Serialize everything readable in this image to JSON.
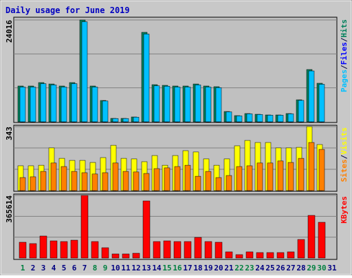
{
  "chart_data": {
    "type": "bar",
    "title": "Daily usage for June 2019",
    "separator": "/",
    "categories": [
      "1",
      "2",
      "3",
      "4",
      "5",
      "6",
      "7",
      "8",
      "9",
      "10",
      "11",
      "12",
      "13",
      "14",
      "15",
      "16",
      "17",
      "18",
      "19",
      "20",
      "21",
      "22",
      "23",
      "24",
      "25",
      "26",
      "27",
      "28",
      "29",
      "30",
      "31"
    ],
    "category_colors": [
      "#008040",
      "#000080",
      "#000080",
      "#000080",
      "#000080",
      "#000080",
      "#000080",
      "#008040",
      "#008040",
      "#000080",
      "#000080",
      "#000080",
      "#000080",
      "#000080",
      "#008040",
      "#008040",
      "#000080",
      "#000080",
      "#000080",
      "#000080",
      "#000080",
      "#008040",
      "#008040",
      "#000080",
      "#000080",
      "#000080",
      "#000080",
      "#000080",
      "#008040",
      "#008040",
      "#000080"
    ],
    "panels": [
      {
        "ylim": [
          0,
          24016
        ],
        "yticks": [
          24016
        ],
        "series": [
          {
            "name": "Hits",
            "color": "#00805c",
            "values": [
              8440,
              8440,
              9250,
              8920,
              8440,
              9250,
              24016,
              8440,
              5030,
              810,
              810,
              1140,
              21100,
              8760,
              8600,
              8440,
              8440,
              8920,
              8440,
              8280,
              2430,
              1460,
              1950,
              1780,
              1620,
              1620,
              1950,
              5190,
              12330,
              9090,
              0
            ]
          },
          {
            "name": "Files",
            "color": "#0000ff",
            "values": [
              4700,
              4700,
              4900,
              4800,
              4700,
              4900,
              12500,
              4700,
              2800,
              500,
              500,
              700,
              10800,
              4800,
              4700,
              4700,
              4700,
              4800,
              4700,
              4600,
              1300,
              800,
              1100,
              1000,
              900,
              900,
              1100,
              2900,
              6500,
              4900,
              0
            ]
          },
          {
            "name": "Pages",
            "color": "#00c0ff",
            "values": [
              8200,
              8200,
              9000,
              8700,
              8200,
              9000,
              23600,
              8200,
              4900,
              780,
              780,
              1100,
              20700,
              8500,
              8400,
              8200,
              8200,
              8700,
              8200,
              8050,
              2350,
              1400,
              1880,
              1720,
              1560,
              1560,
              1880,
              5050,
              12000,
              8850,
              0
            ]
          }
        ]
      },
      {
        "ylim": [
          0,
          343
        ],
        "yticks": [
          343
        ],
        "series": [
          {
            "name": "Visits",
            "color": "#ffff00",
            "values": [
              133,
              133,
              136,
              229,
              173,
              162,
              162,
              151,
              177,
              243,
              173,
              170,
              155,
              188,
              136,
              188,
              214,
              207,
              170,
              136,
              170,
              240,
              269,
              258,
              258,
              229,
              229,
              232,
              343,
              247,
              0
            ]
          },
          {
            "name": "Sites",
            "color": "#ff8000",
            "values": [
              70,
              74,
              103,
              148,
              129,
              103,
              96,
              89,
              96,
              148,
              103,
              100,
              92,
              118,
              122,
              129,
              136,
              77,
              103,
              70,
              81,
              129,
              133,
              148,
              148,
              159,
              151,
              173,
              258,
              221,
              0
            ]
          }
        ]
      },
      {
        "ylim": [
          0,
          365614
        ],
        "yticks": [
          365614
        ],
        "series": [
          {
            "name": "KBytes",
            "color": "#ff0000",
            "values": [
              92400,
              84400,
              128600,
              100400,
              96400,
              104400,
              365614,
              96400,
              60300,
              24100,
              24100,
              28100,
              333500,
              96400,
              100400,
              96400,
              96400,
              120500,
              96400,
              92400,
              36200,
              20100,
              36200,
              32100,
              32100,
              32100,
              36200,
              108500,
              249100,
              208900,
              0
            ]
          }
        ]
      }
    ]
  }
}
